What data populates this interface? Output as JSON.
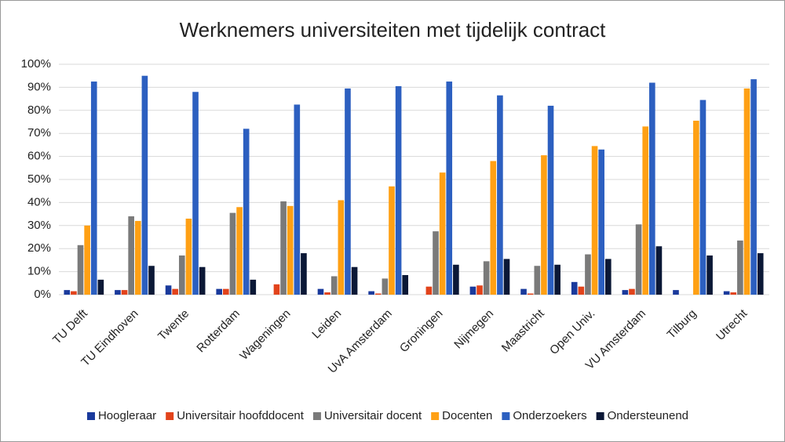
{
  "chart_data": {
    "type": "bar",
    "title": "Werknemers universiteiten met tijdelijk contract",
    "categories": [
      "TU Delft",
      "TU Eindhoven",
      "Twente",
      "Rotterdam",
      "Wageningen",
      "Leiden",
      "UvA Amsterdam",
      "Groningen",
      "Nijmegen",
      "Maastricht",
      "Open Univ.",
      "VU Amsterdam",
      "Tilburg",
      "Utrecht"
    ],
    "series": [
      {
        "name": "Hoogleraar",
        "color": "#1a3a9c",
        "values": [
          2,
          2,
          4,
          2.5,
          0,
          2.5,
          1.5,
          0,
          3.5,
          2.5,
          5.5,
          2,
          2,
          1.5
        ]
      },
      {
        "name": "Universitair hoofddocent",
        "color": "#e2431b",
        "values": [
          1.5,
          2,
          2.5,
          2.5,
          4.5,
          1,
          0.5,
          3.5,
          4,
          0.5,
          3.5,
          2.5,
          0,
          1
        ]
      },
      {
        "name": "Universitair docent",
        "color": "#7a7a7a",
        "values": [
          21.5,
          34,
          17,
          35.5,
          40.5,
          8,
          7,
          27.5,
          14.5,
          12.5,
          17.5,
          30.5,
          0,
          23.5
        ]
      },
      {
        "name": "Docenten",
        "color": "#ffa014",
        "values": [
          30,
          32,
          33,
          38,
          38.5,
          41,
          47,
          53,
          58,
          60.5,
          64.5,
          73,
          75.5,
          89.5
        ]
      },
      {
        "name": "Onderzoekers",
        "color": "#2c5fc0",
        "values": [
          92.5,
          95,
          88,
          72,
          82.5,
          89.5,
          90.5,
          92.5,
          86.5,
          82,
          63,
          92,
          84.5,
          93.5
        ]
      },
      {
        "name": "Ondersteunend",
        "color": "#0b1836",
        "values": [
          6.5,
          12.5,
          12,
          6.5,
          18,
          12,
          8.5,
          13,
          15.5,
          13,
          15.5,
          21,
          17,
          18
        ]
      }
    ],
    "ylim": [
      0,
      100
    ],
    "yticks": [
      {
        "value": 0,
        "label": "0%"
      },
      {
        "value": 10,
        "label": "10%"
      },
      {
        "value": 20,
        "label": "20%"
      },
      {
        "value": 30,
        "label": "30%"
      },
      {
        "value": 40,
        "label": "40%"
      },
      {
        "value": 50,
        "label": "50%"
      },
      {
        "value": 60,
        "label": "60%"
      },
      {
        "value": 70,
        "label": "70%"
      },
      {
        "value": 80,
        "label": "80%"
      },
      {
        "value": 90,
        "label": "90%"
      },
      {
        "value": 100,
        "label": "100%"
      }
    ],
    "grid": true,
    "legend": "bottom"
  }
}
